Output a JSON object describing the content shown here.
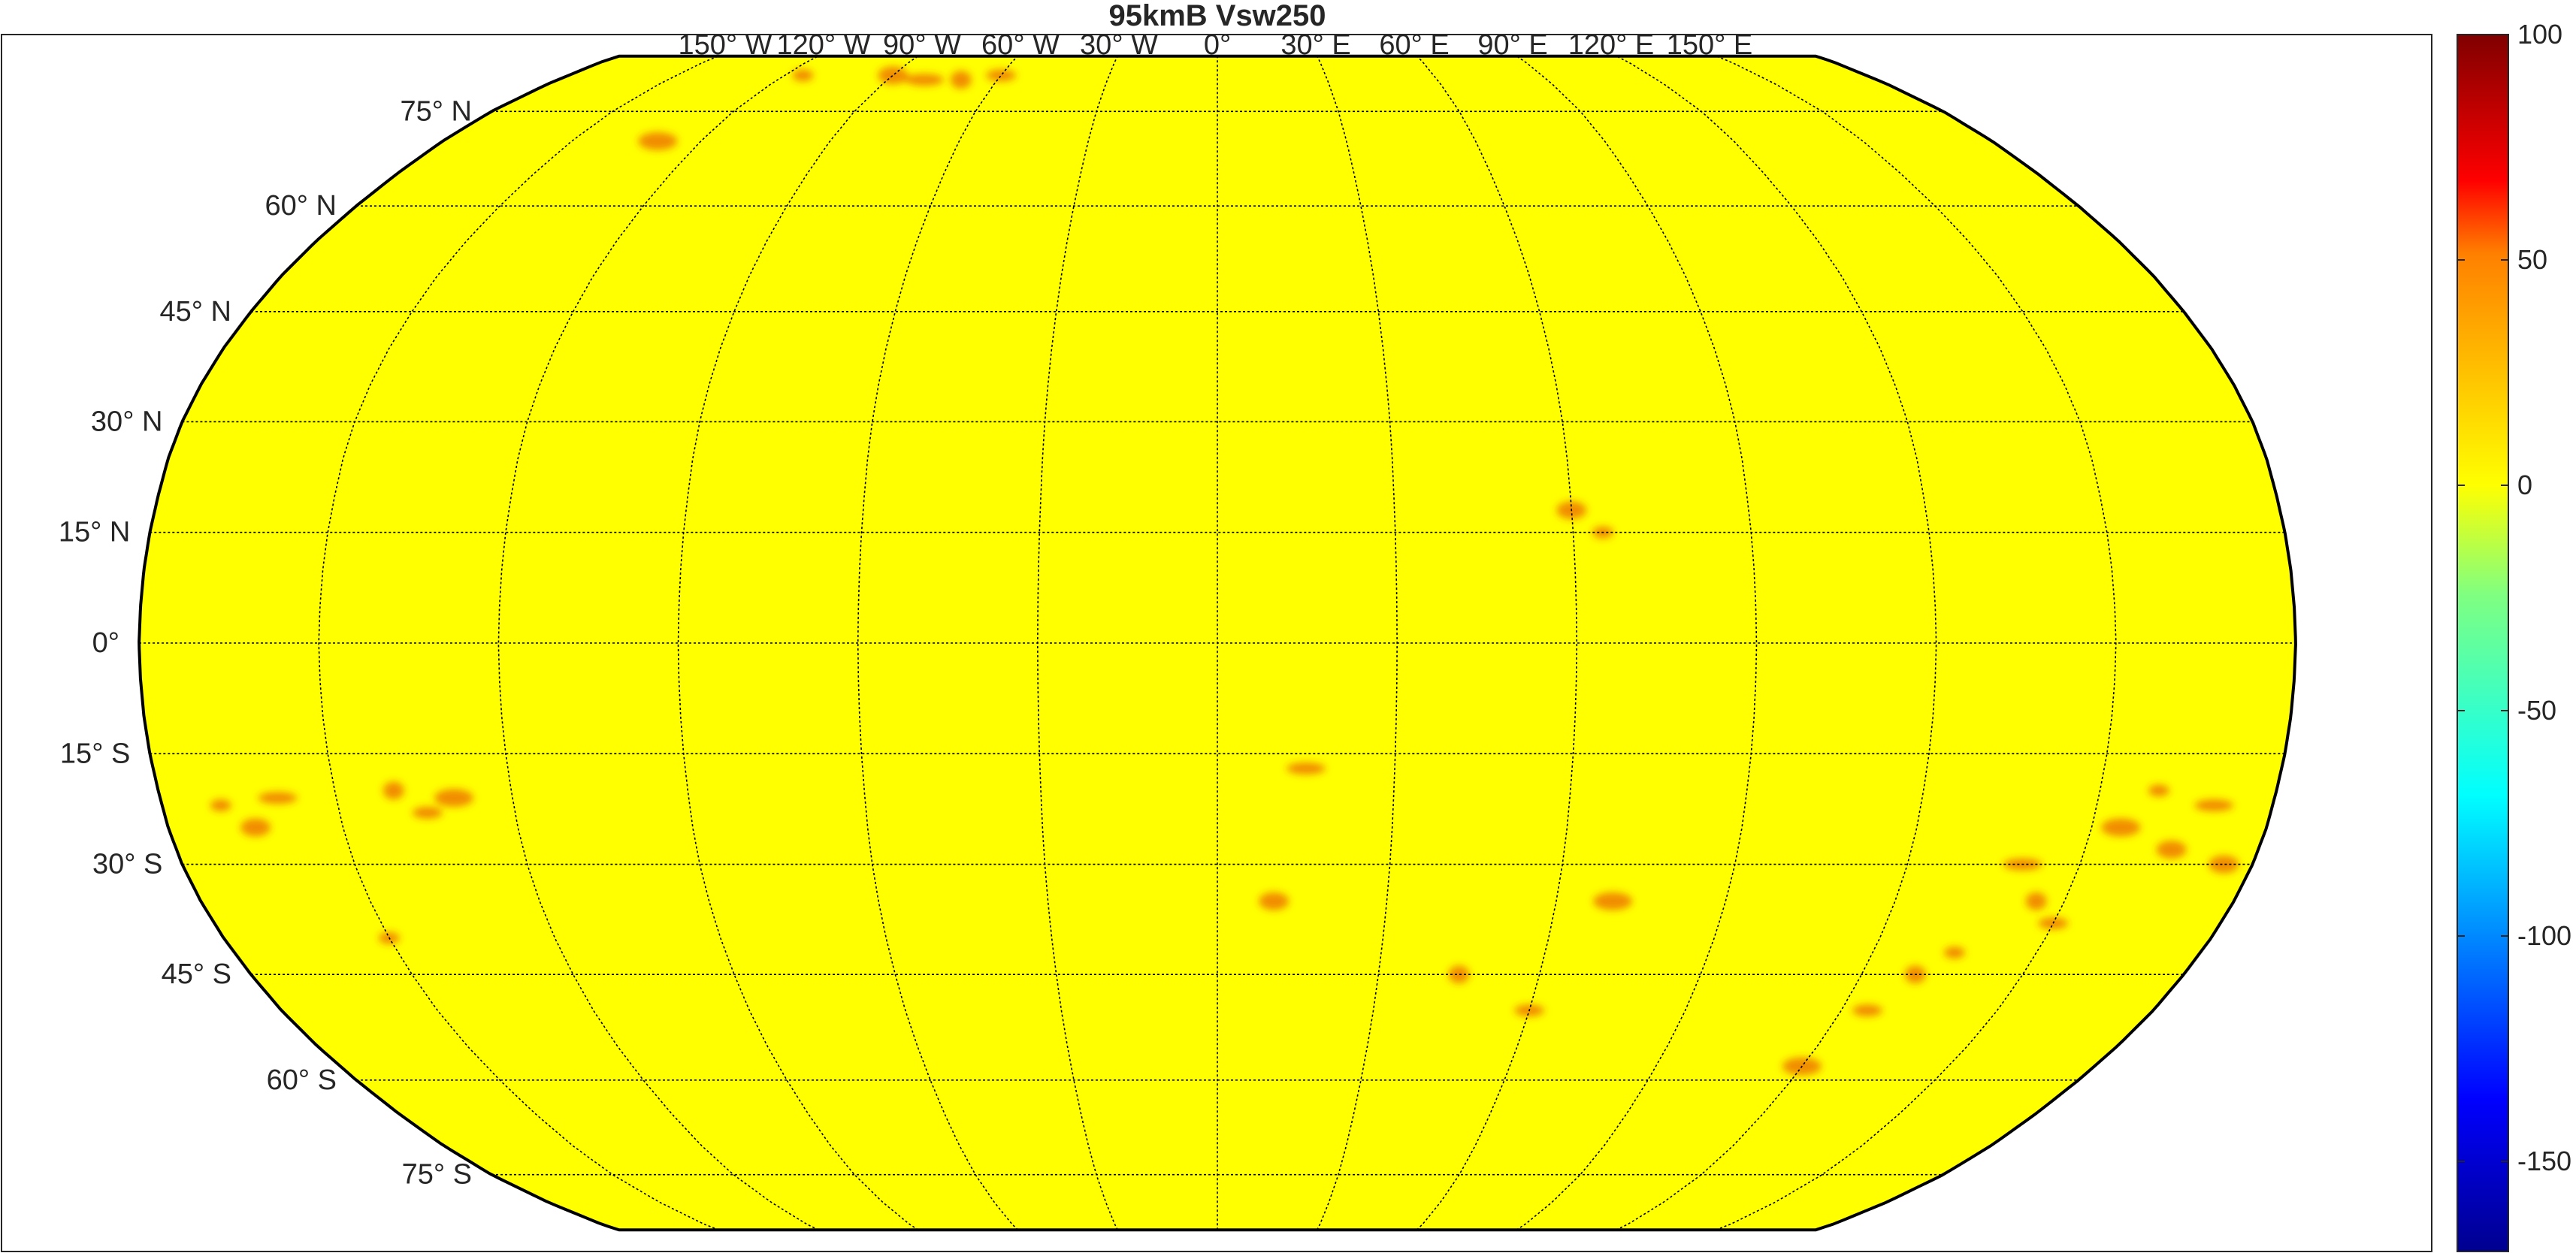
{
  "title": "95kmB Vsw250",
  "projection": "Robinson",
  "map": {
    "fill_color": "#ffff00",
    "anomaly_color": "#e63200",
    "longitude_labels": [
      "150° W",
      "120° W",
      "90° W",
      "60° W",
      "30° W",
      "0°",
      "30° E",
      "60° E",
      "90° E",
      "120° E",
      "150° E"
    ],
    "longitude_values": [
      -150,
      -120,
      -90,
      -60,
      -30,
      0,
      30,
      60,
      90,
      120,
      150
    ],
    "latitude_labels": [
      "75° N",
      "60° N",
      "45° N",
      "30° N",
      "15° N",
      "0°",
      "15° S",
      "30° S",
      "45° S",
      "60° S",
      "75° S"
    ],
    "latitude_values": [
      75,
      60,
      45,
      30,
      15,
      0,
      -15,
      -30,
      -45,
      -60,
      -75
    ],
    "grid": true
  },
  "colorbar": {
    "colormap": "jet",
    "min": -170,
    "max": 100,
    "tick_labels": [
      "100",
      "50",
      "0",
      "-50",
      "-100",
      "-150"
    ],
    "tick_values": [
      100,
      50,
      0,
      -50,
      -100,
      -150
    ]
  }
}
